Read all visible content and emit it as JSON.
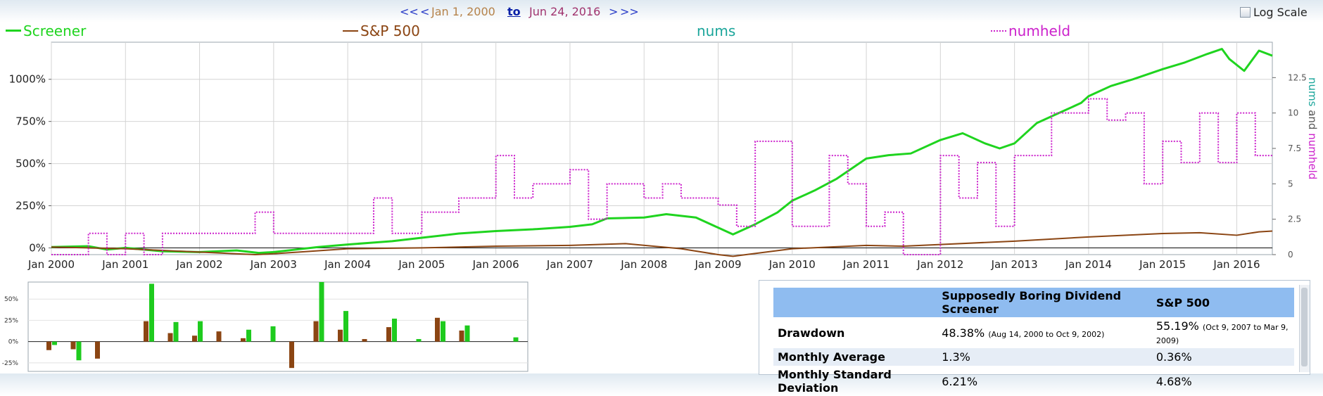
{
  "nav": {
    "prev_far": "<<",
    "prev": "<",
    "start_date": "Jan 1, 2000",
    "to": "to",
    "end_date": "Jun 24, 2016",
    "next": ">",
    "next_far": ">>"
  },
  "log_scale_label": "Log Scale",
  "legend": [
    {
      "label": "Screener",
      "color": "#1fd41f"
    },
    {
      "label": "S&P 500",
      "color": "#8b4513"
    },
    {
      "label": "nums",
      "color": "#1aa59a"
    },
    {
      "label": "numheld",
      "color": "#cc22cc"
    }
  ],
  "chart_data": [
    {
      "type": "line",
      "x_ticks": [
        "Jan 2000",
        "Jan 2001",
        "Jan 2002",
        "Jan 2003",
        "Jan 2004",
        "Jan 2005",
        "Jan 2006",
        "Jan 2007",
        "Jan 2008",
        "Jan 2009",
        "Jan 2010",
        "Jan 2011",
        "Jan 2012",
        "Jan 2013",
        "Jan 2014",
        "Jan 2015",
        "Jan 2016"
      ],
      "xlim": [
        2000.0,
        2016.48
      ],
      "y_ticks": [
        "0%",
        "250%",
        "500%",
        "750%",
        "1000%"
      ],
      "ylim": [
        -40,
        1220
      ],
      "y2_ticks": [
        "0",
        "2.5",
        "5",
        "7.5",
        "10",
        "12.5"
      ],
      "y2lim": [
        0,
        15
      ],
      "y2label": "nums and numheld",
      "grid": true,
      "series": [
        {
          "name": "Screener",
          "color": "#1fd41f",
          "x": [
            2000.0,
            2000.5,
            2000.75,
            2001.0,
            2001.5,
            2002.0,
            2002.5,
            2002.8,
            2003.0,
            2003.3,
            2003.6,
            2004.0,
            2004.3,
            2004.6,
            2005.0,
            2005.5,
            2006.0,
            2006.5,
            2007.0,
            2007.3,
            2007.5,
            2008.0,
            2008.3,
            2008.7,
            2009.0,
            2009.2,
            2009.5,
            2009.8,
            2010.0,
            2010.3,
            2010.6,
            2010.8,
            2011.0,
            2011.3,
            2011.6,
            2012.0,
            2012.3,
            2012.6,
            2012.8,
            2013.0,
            2013.3,
            2013.6,
            2013.9,
            2014.0,
            2014.3,
            2014.6,
            2015.0,
            2015.3,
            2015.6,
            2015.8,
            2015.9,
            2016.1,
            2016.3,
            2016.48
          ],
          "values": [
            5,
            10,
            -10,
            0,
            -20,
            -25,
            -15,
            -30,
            -25,
            -10,
            5,
            20,
            30,
            40,
            60,
            85,
            100,
            110,
            125,
            140,
            175,
            180,
            200,
            180,
            120,
            80,
            140,
            210,
            280,
            340,
            410,
            470,
            530,
            550,
            560,
            640,
            680,
            620,
            590,
            620,
            740,
            800,
            860,
            900,
            960,
            1000,
            1060,
            1100,
            1150,
            1180,
            1120,
            1050,
            1170,
            1140
          ]
        },
        {
          "name": "S&P 500",
          "color": "#8b4513",
          "x": [
            2000.0,
            2000.5,
            2001.0,
            2001.5,
            2002.0,
            2002.75,
            2003.0,
            2003.5,
            2004.0,
            2005.0,
            2006.0,
            2007.0,
            2007.75,
            2008.5,
            2009.0,
            2009.2,
            2010.0,
            2011.0,
            2011.5,
            2012.0,
            2013.0,
            2014.0,
            2015.0,
            2015.5,
            2016.0,
            2016.3,
            2016.48
          ],
          "values": [
            5,
            0,
            -5,
            -15,
            -25,
            -40,
            -35,
            -20,
            -5,
            0,
            10,
            15,
            25,
            -5,
            -40,
            -50,
            -5,
            15,
            10,
            20,
            40,
            65,
            85,
            90,
            75,
            95,
            100
          ]
        },
        {
          "name": "numheld",
          "color": "#cc22cc",
          "axis": "right",
          "x": [
            2000.0,
            2000.5,
            2000.75,
            2001.0,
            2001.25,
            2001.5,
            2002.0,
            2002.5,
            2002.75,
            2003.0,
            2003.5,
            2004.0,
            2004.35,
            2004.6,
            2005.0,
            2005.5,
            2006.0,
            2006.25,
            2006.5,
            2007.0,
            2007.25,
            2007.5,
            2008.0,
            2008.25,
            2008.5,
            2009.0,
            2009.25,
            2009.5,
            2010.0,
            2010.25,
            2010.5,
            2010.75,
            2011.0,
            2011.25,
            2011.5,
            2012.0,
            2012.25,
            2012.5,
            2012.75,
            2013.0,
            2013.5,
            2014.0,
            2014.25,
            2014.5,
            2014.75,
            2015.0,
            2015.25,
            2015.5,
            2015.75,
            2016.0,
            2016.25,
            2016.48
          ],
          "values": [
            0,
            1.5,
            0,
            1.5,
            0,
            1.5,
            1.5,
            1.5,
            3,
            1.5,
            1.5,
            1.5,
            4,
            1.5,
            3,
            4,
            7,
            4,
            5,
            6,
            2.5,
            5,
            4,
            5,
            4,
            3.5,
            2,
            8,
            2,
            2,
            7,
            5,
            2,
            3,
            0,
            7,
            4,
            6.5,
            2,
            7,
            10,
            11,
            9.5,
            10,
            5,
            8,
            6.5,
            10,
            6.5,
            10,
            7,
            7
          ]
        }
      ]
    },
    {
      "type": "bar",
      "y_ticks": [
        "50%",
        "25%",
        "0%",
        "-25%"
      ],
      "ylim": [
        -35,
        70
      ],
      "series": [
        {
          "name": "Screener",
          "color": "#1ecb1e",
          "values": [
            -4,
            -22,
            0,
            0,
            68,
            23,
            24,
            0,
            14,
            18,
            0,
            70,
            36,
            0,
            27,
            3,
            24,
            19,
            0,
            5
          ]
        },
        {
          "name": "S&P 500",
          "color": "#8b4513",
          "values": [
            -10,
            -9,
            -20,
            0,
            24,
            10,
            7,
            12,
            4,
            0,
            -31,
            24,
            14,
            3,
            17,
            0,
            28,
            13,
            0,
            0
          ]
        }
      ]
    }
  ],
  "stats": {
    "headers": [
      "",
      "Supposedly Boring Dividend Screener",
      "S&P 500"
    ],
    "rows": [
      {
        "label": "Drawdown",
        "screener_value": "48.38%",
        "screener_note": "(Aug 14, 2000 to Oct 9, 2002)",
        "sp_value": "55.19%",
        "sp_note": "(Oct 9, 2007 to Mar 9, 2009)"
      },
      {
        "label": "Monthly Average",
        "screener_value": "1.3%",
        "screener_note": "",
        "sp_value": "0.36%",
        "sp_note": ""
      },
      {
        "label": "Monthly Standard Deviation",
        "screener_value": "6.21%",
        "screener_note": "",
        "sp_value": "4.68%",
        "sp_note": ""
      }
    ]
  }
}
